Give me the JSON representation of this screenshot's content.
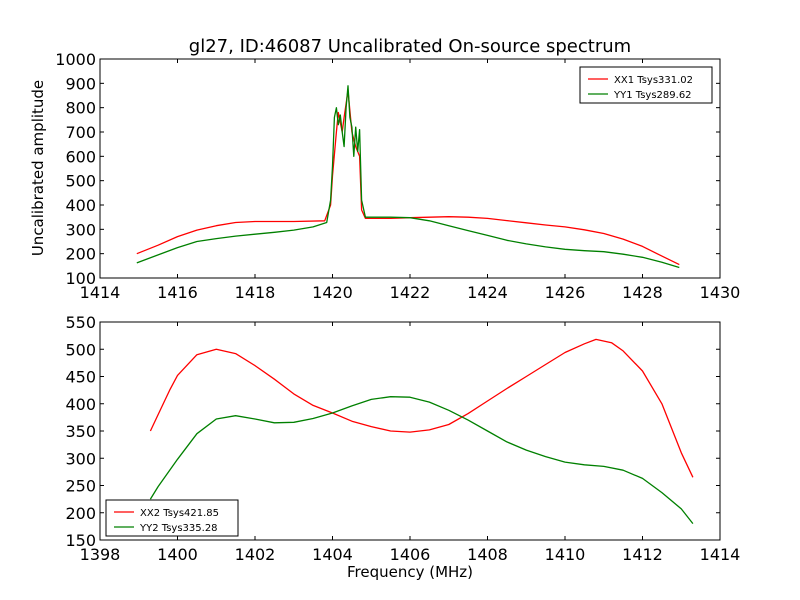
{
  "colors": {
    "red": "#ff0000",
    "green": "#008000"
  },
  "chart_data": [
    {
      "type": "line",
      "title": "gl27, ID:46087 Uncalibrated On-source spectrum",
      "xlabel": "",
      "ylabel": "Uncalibrated amplitude",
      "xlim": [
        1414,
        1430
      ],
      "ylim": [
        100,
        1000
      ],
      "xticks": [
        1414,
        1416,
        1418,
        1420,
        1422,
        1424,
        1426,
        1428,
        1430
      ],
      "yticks": [
        100,
        200,
        300,
        400,
        500,
        600,
        700,
        800,
        900,
        1000
      ],
      "legend_position": "top-right",
      "series": [
        {
          "name": "XX1 Tsys331.02",
          "color": "#ff0000",
          "points": [
            [
              1414.95,
              200
            ],
            [
              1415.5,
              235
            ],
            [
              1416,
              270
            ],
            [
              1416.5,
              297
            ],
            [
              1417,
              315
            ],
            [
              1417.5,
              328
            ],
            [
              1418,
              332
            ],
            [
              1419,
              332
            ],
            [
              1419.8,
              335
            ],
            [
              1419.95,
              400
            ],
            [
              1420,
              520
            ],
            [
              1420.1,
              700
            ],
            [
              1420.15,
              780
            ],
            [
              1420.25,
              700
            ],
            [
              1420.3,
              760
            ],
            [
              1420.4,
              870
            ],
            [
              1420.5,
              700
            ],
            [
              1420.6,
              640
            ],
            [
              1420.7,
              600
            ],
            [
              1420.75,
              380
            ],
            [
              1420.85,
              345
            ],
            [
              1421.5,
              345
            ],
            [
              1422,
              348
            ],
            [
              1422.5,
              350
            ],
            [
              1423,
              352
            ],
            [
              1423.5,
              350
            ],
            [
              1424,
              345
            ],
            [
              1424.5,
              336
            ],
            [
              1425,
              327
            ],
            [
              1425.5,
              318
            ],
            [
              1426,
              310
            ],
            [
              1426.5,
              298
            ],
            [
              1427,
              283
            ],
            [
              1427.5,
              260
            ],
            [
              1428,
              230
            ],
            [
              1428.5,
              190
            ],
            [
              1428.95,
              155
            ]
          ]
        },
        {
          "name": "YY1 Tsys289.62",
          "color": "#008000",
          "points": [
            [
              1414.95,
              162
            ],
            [
              1415.5,
              195
            ],
            [
              1416,
              225
            ],
            [
              1416.5,
              250
            ],
            [
              1417,
              262
            ],
            [
              1417.5,
              272
            ],
            [
              1418,
              280
            ],
            [
              1418.5,
              288
            ],
            [
              1419,
              297
            ],
            [
              1419.5,
              310
            ],
            [
              1419.85,
              328
            ],
            [
              1419.95,
              420
            ],
            [
              1420,
              560
            ],
            [
              1420.05,
              760
            ],
            [
              1420.1,
              800
            ],
            [
              1420.15,
              730
            ],
            [
              1420.2,
              770
            ],
            [
              1420.25,
              700
            ],
            [
              1420.3,
              640
            ],
            [
              1420.35,
              800
            ],
            [
              1420.4,
              890
            ],
            [
              1420.45,
              760
            ],
            [
              1420.5,
              720
            ],
            [
              1420.55,
              600
            ],
            [
              1420.6,
              720
            ],
            [
              1420.65,
              620
            ],
            [
              1420.7,
              710
            ],
            [
              1420.75,
              420
            ],
            [
              1420.85,
              350
            ],
            [
              1421.5,
              350
            ],
            [
              1422,
              348
            ],
            [
              1422.5,
              335
            ],
            [
              1423,
              315
            ],
            [
              1423.5,
              295
            ],
            [
              1424,
              275
            ],
            [
              1424.5,
              255
            ],
            [
              1425,
              240
            ],
            [
              1425.5,
              228
            ],
            [
              1426,
              218
            ],
            [
              1426.5,
              212
            ],
            [
              1427,
              208
            ],
            [
              1427.5,
              198
            ],
            [
              1428,
              185
            ],
            [
              1428.5,
              165
            ],
            [
              1428.95,
              143
            ]
          ]
        }
      ]
    },
    {
      "type": "line",
      "title": "",
      "xlabel": "Frequency (MHz)",
      "ylabel": "",
      "xlim": [
        1398,
        1414
      ],
      "ylim": [
        150,
        550
      ],
      "xticks": [
        1398,
        1400,
        1402,
        1404,
        1406,
        1408,
        1410,
        1412,
        1414
      ],
      "yticks": [
        150,
        200,
        250,
        300,
        350,
        400,
        450,
        500,
        550
      ],
      "legend_position": "bottom-left",
      "series": [
        {
          "name": "XX2 Tsys421.85",
          "color": "#ff0000",
          "points": [
            [
              1399.3,
              350
            ],
            [
              1399.5,
              380
            ],
            [
              1399.8,
              425
            ],
            [
              1400,
              452
            ],
            [
              1400.5,
              490
            ],
            [
              1401,
              500
            ],
            [
              1401.5,
              492
            ],
            [
              1402,
              470
            ],
            [
              1402.5,
              445
            ],
            [
              1403,
              418
            ],
            [
              1403.5,
              397
            ],
            [
              1404,
              383
            ],
            [
              1404.5,
              368
            ],
            [
              1405,
              358
            ],
            [
              1405.5,
              350
            ],
            [
              1406,
              348
            ],
            [
              1406.5,
              352
            ],
            [
              1407,
              362
            ],
            [
              1407.5,
              382
            ],
            [
              1408,
              405
            ],
            [
              1408.5,
              428
            ],
            [
              1409,
              450
            ],
            [
              1409.5,
              472
            ],
            [
              1410,
              494
            ],
            [
              1410.5,
              510
            ],
            [
              1410.8,
              518
            ],
            [
              1411.2,
              512
            ],
            [
              1411.5,
              497
            ],
            [
              1412,
              460
            ],
            [
              1412.5,
              400
            ],
            [
              1413,
              310
            ],
            [
              1413.3,
              265
            ]
          ]
        },
        {
          "name": "YY2 Tsys335.28",
          "color": "#008000",
          "points": [
            [
              1399.3,
              225
            ],
            [
              1399.5,
              248
            ],
            [
              1400,
              298
            ],
            [
              1400.5,
              345
            ],
            [
              1401,
              372
            ],
            [
              1401.5,
              378
            ],
            [
              1402,
              372
            ],
            [
              1402.5,
              365
            ],
            [
              1403,
              366
            ],
            [
              1403.5,
              373
            ],
            [
              1404,
              383
            ],
            [
              1404.5,
              396
            ],
            [
              1405,
              408
            ],
            [
              1405.5,
              413
            ],
            [
              1406,
              412
            ],
            [
              1406.5,
              403
            ],
            [
              1407,
              388
            ],
            [
              1407.5,
              370
            ],
            [
              1408,
              350
            ],
            [
              1408.5,
              330
            ],
            [
              1409,
              315
            ],
            [
              1409.5,
              303
            ],
            [
              1410,
              293
            ],
            [
              1410.5,
              288
            ],
            [
              1411,
              285
            ],
            [
              1411.5,
              278
            ],
            [
              1412,
              263
            ],
            [
              1412.5,
              237
            ],
            [
              1413,
              207
            ],
            [
              1413.3,
              180
            ]
          ]
        }
      ]
    }
  ]
}
